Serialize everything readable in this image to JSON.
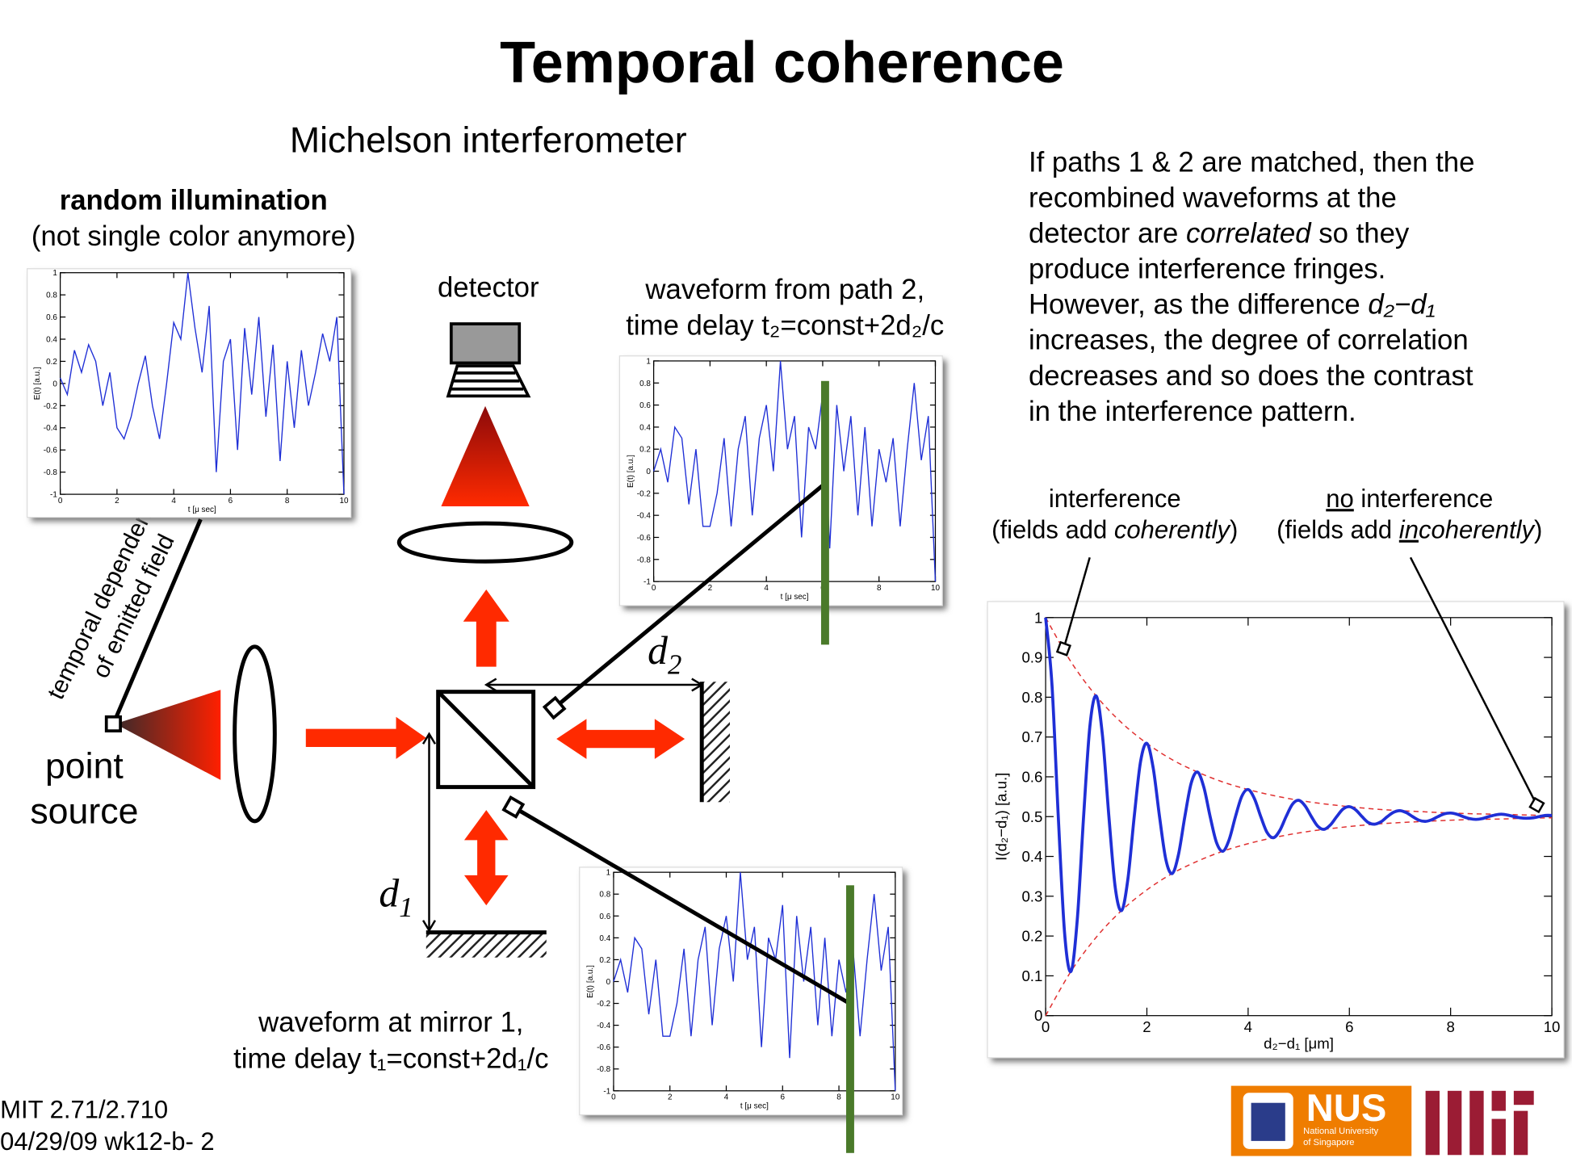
{
  "title": "Temporal coherence",
  "subtitle": "Michelson interferometer",
  "illumination": {
    "heading": "random illumination",
    "note": "(not single color anymore)"
  },
  "detector": "detector",
  "field_label": [
    "temporal dependence",
    "of emitted field"
  ],
  "source": [
    "point",
    "source"
  ],
  "d2": {
    "base": "d",
    "sub": "2"
  },
  "d1": {
    "base": "d",
    "sub": "1"
  },
  "path2_caption": [
    "waveform from path 2,",
    "time delay t₂=const+2d₂/c"
  ],
  "mirror1_caption": [
    "waveform at mirror 1,",
    "time delay t₁=const+2d₁/c"
  ],
  "explanation": [
    [
      "If paths 1 & 2 are matched, then the"
    ],
    [
      "recombined waveforms at the"
    ],
    [
      "detector are ",
      "correlated",
      " so they"
    ],
    [
      "produce interference fringes."
    ],
    [
      "However, as the difference ",
      "d₂−d₁"
    ],
    [
      "increases, the degree of correlation"
    ],
    [
      "decreases and so does the contrast"
    ],
    [
      "in the interference pattern."
    ]
  ],
  "interference_label": {
    "line1": "interference",
    "line2": [
      "(fields add ",
      "coherently",
      ")"
    ]
  },
  "no_interference_label": {
    "line1": [
      "no",
      " interference"
    ],
    "line2": [
      "(fields add ",
      "in",
      "coherently",
      ")"
    ]
  },
  "footer": [
    "MIT 2.71/2.710",
    "04/29/09 wk12-b-  2"
  ],
  "logo": {
    "nus": "NUS",
    "nus_sub": [
      "National University",
      "of Singapore"
    ]
  },
  "waveforms": [
    {
      "xlim": [
        0,
        10
      ],
      "ylim": [
        -1,
        1
      ],
      "xticks": [
        0,
        2,
        4,
        6,
        8,
        10
      ],
      "yticks": [
        -1,
        -0.8,
        -0.6,
        -0.4,
        -0.2,
        0,
        0.2,
        0.4,
        0.6,
        0.8,
        1
      ],
      "xlabel": "t [μ sec]",
      "ylabel": "E(t) [a.u.]",
      "color": "#1f2fd6",
      "x": [
        0,
        0.25,
        0.5,
        0.75,
        1,
        1.25,
        1.5,
        1.75,
        2,
        2.25,
        2.5,
        2.75,
        3,
        3.25,
        3.5,
        3.75,
        4,
        4.25,
        4.5,
        4.75,
        5,
        5.25,
        5.5,
        5.75,
        6,
        6.25,
        6.5,
        6.75,
        7,
        7.25,
        7.5,
        7.75,
        8,
        8.25,
        8.5,
        8.75,
        9,
        9.25,
        9.5,
        9.75,
        10
      ],
      "values": [
        0.05,
        -0.1,
        0.3,
        0.1,
        0.35,
        0.2,
        -0.2,
        0.1,
        -0.4,
        -0.5,
        -0.3,
        0.0,
        0.25,
        -0.2,
        -0.5,
        0.0,
        0.55,
        0.4,
        1.0,
        0.5,
        0.1,
        0.7,
        -0.8,
        0.2,
        0.4,
        -0.6,
        0.5,
        -0.1,
        0.6,
        -0.3,
        0.35,
        -0.7,
        0.2,
        -0.4,
        0.3,
        -0.2,
        0.1,
        0.45,
        0.2,
        0.6,
        -1.0
      ]
    },
    {
      "xlim": [
        0,
        10
      ],
      "ylim": [
        -1,
        1
      ],
      "xticks": [
        0,
        2,
        4,
        6,
        8,
        10
      ],
      "yticks": [
        -1,
        -0.8,
        -0.6,
        -0.4,
        -0.2,
        0,
        0.2,
        0.4,
        0.6,
        0.8,
        1
      ],
      "xlabel": "t [μ sec]",
      "ylabel": "E(t) [a.u.]",
      "color": "#1f2fd6",
      "x": [
        0,
        0.25,
        0.5,
        0.75,
        1,
        1.25,
        1.5,
        1.75,
        2,
        2.25,
        2.5,
        2.75,
        3,
        3.25,
        3.5,
        3.75,
        4,
        4.25,
        4.5,
        4.75,
        5,
        5.25,
        5.5,
        5.75,
        6,
        6.25,
        6.5,
        6.75,
        7,
        7.25,
        7.5,
        7.75,
        8,
        8.25,
        8.5,
        8.75,
        9,
        9.25,
        9.5,
        9.75,
        10
      ],
      "values": [
        0.0,
        0.2,
        -0.1,
        0.4,
        0.3,
        -0.3,
        0.2,
        -0.5,
        -0.5,
        -0.2,
        0.3,
        -0.5,
        0.2,
        0.5,
        -0.4,
        0.3,
        0.6,
        0.0,
        1.0,
        0.2,
        0.5,
        -0.6,
        0.4,
        0.2,
        0.7,
        -0.7,
        0.6,
        0.0,
        0.5,
        -0.4,
        0.4,
        -0.5,
        0.2,
        -0.1,
        0.3,
        -0.5,
        0.2,
        0.8,
        0.1,
        0.5,
        -1.0
      ]
    },
    {
      "xlim": [
        0,
        10
      ],
      "ylim": [
        -1,
        1
      ],
      "xticks": [
        0,
        2,
        4,
        6,
        8,
        10
      ],
      "yticks": [
        -1,
        -0.8,
        -0.6,
        -0.4,
        -0.2,
        0,
        0.2,
        0.4,
        0.6,
        0.8,
        1
      ],
      "xlabel": "t [μ sec]",
      "ylabel": "E(t) [a.u.]",
      "color": "#1f2fd6",
      "x": [
        0,
        0.25,
        0.5,
        0.75,
        1,
        1.25,
        1.5,
        1.75,
        2,
        2.25,
        2.5,
        2.75,
        3,
        3.25,
        3.5,
        3.75,
        4,
        4.25,
        4.5,
        4.75,
        5,
        5.25,
        5.5,
        5.75,
        6,
        6.25,
        6.5,
        6.75,
        7,
        7.25,
        7.5,
        7.75,
        8,
        8.25,
        8.5,
        8.75,
        9,
        9.25,
        9.5,
        9.75,
        10
      ],
      "values": [
        0.0,
        0.2,
        -0.1,
        0.4,
        0.3,
        -0.3,
        0.2,
        -0.5,
        -0.5,
        -0.2,
        0.3,
        -0.5,
        0.2,
        0.5,
        -0.4,
        0.3,
        0.6,
        0.0,
        1.0,
        0.2,
        0.5,
        -0.6,
        0.4,
        0.2,
        0.7,
        -0.7,
        0.6,
        0.0,
        0.5,
        -0.4,
        0.4,
        -0.5,
        0.2,
        -0.1,
        0.3,
        -0.5,
        0.2,
        0.8,
        0.1,
        0.5,
        -1.0
      ]
    }
  ],
  "coherence_plot": {
    "xlim": [
      0,
      10
    ],
    "ylim": [
      0,
      1
    ],
    "xticks": [
      0,
      2,
      4,
      6,
      8,
      10
    ],
    "yticks": [
      0,
      0.1,
      0.2,
      0.3,
      0.4,
      0.5,
      0.6,
      0.7,
      0.8,
      0.9,
      1
    ],
    "xlabel": "d₂−d₁ [μm]",
    "ylabel": "I(d₂−d₁) [a.u.]",
    "color": "#1f2fd6",
    "x": [
      0,
      0.125,
      0.25,
      0.375,
      0.5,
      0.625,
      0.75,
      0.875,
      1,
      1.125,
      1.25,
      1.375,
      1.5,
      1.625,
      1.75,
      1.875,
      2,
      2.125,
      2.25,
      2.375,
      2.5,
      2.625,
      2.75,
      2.875,
      3,
      3.125,
      3.25,
      3.375,
      3.5,
      3.625,
      3.75,
      3.875,
      4,
      4.125,
      4.25,
      4.375,
      4.5,
      4.625,
      4.75,
      4.875,
      5,
      5.125,
      5.25,
      5.375,
      5.5,
      5.625,
      5.75,
      5.875,
      6,
      6.125,
      6.25,
      6.375,
      6.5,
      6.625,
      6.75,
      6.875,
      7,
      7.125,
      7.25,
      7.375,
      7.5,
      7.625,
      7.75,
      7.875,
      8,
      8.125,
      8.25,
      8.375,
      8.5,
      8.625,
      8.75,
      8.875,
      9,
      9.125,
      9.25,
      9.375,
      9.5,
      9.625,
      9.75,
      9.875,
      10
    ],
    "values": [
      1.0,
      0.832,
      0.5,
      0.207,
      0.111,
      0.241,
      0.5,
      0.728,
      0.803,
      0.701,
      0.5,
      0.322,
      0.264,
      0.343,
      0.5,
      0.638,
      0.684,
      0.622,
      0.5,
      0.392,
      0.357,
      0.405,
      0.5,
      0.584,
      0.612,
      0.574,
      0.5,
      0.435,
      0.413,
      0.442,
      0.5,
      0.551,
      0.568,
      0.545,
      0.5,
      0.46,
      0.447,
      0.465,
      0.5,
      0.531,
      0.541,
      0.527,
      0.5,
      0.476,
      0.468,
      0.479,
      0.5,
      0.519,
      0.525,
      0.517,
      0.5,
      0.485,
      0.481,
      0.487,
      0.5,
      0.511,
      0.515,
      0.51,
      0.5,
      0.491,
      0.488,
      0.492,
      0.5,
      0.507,
      0.509,
      0.506,
      0.5,
      0.495,
      0.493,
      0.495,
      0.5,
      0.504,
      0.506,
      0.504,
      0.5,
      0.497,
      0.496,
      0.497,
      0.5,
      0.503,
      0.503
    ],
    "envelope": {
      "color": "#e03030",
      "x": [
        0,
        0.5,
        1,
        1.5,
        2,
        2.5,
        3,
        3.5,
        4,
        4.5,
        5,
        5.5,
        6,
        6.5,
        7,
        7.5,
        8,
        8.5,
        9,
        9.5,
        10
      ],
      "upper": [
        1,
        0.889,
        0.803,
        0.736,
        0.684,
        0.643,
        0.612,
        0.587,
        0.568,
        0.553,
        0.541,
        0.532,
        0.525,
        0.519,
        0.515,
        0.512,
        0.509,
        0.507,
        0.506,
        0.504,
        0.503
      ],
      "lower": [
        0,
        0.111,
        0.197,
        0.264,
        0.316,
        0.357,
        0.388,
        0.413,
        0.432,
        0.447,
        0.459,
        0.468,
        0.475,
        0.481,
        0.485,
        0.488,
        0.491,
        0.493,
        0.494,
        0.496,
        0.497
      ]
    }
  }
}
